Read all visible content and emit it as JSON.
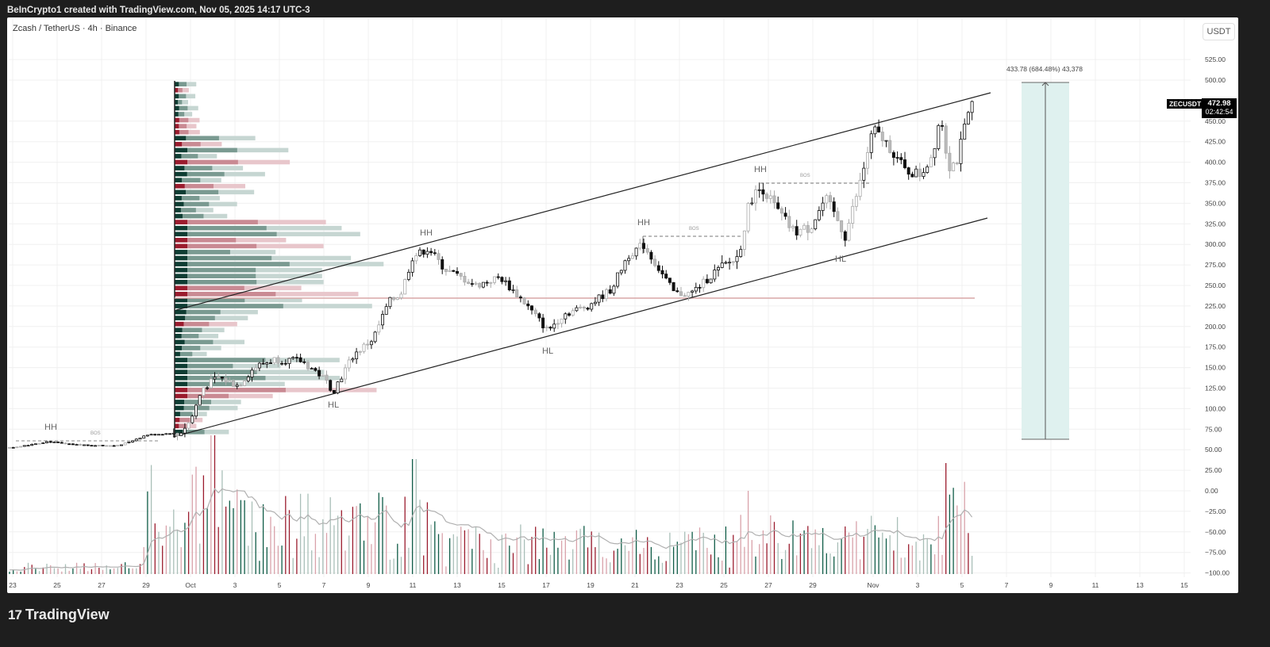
{
  "header": {
    "attribution": "BeInCrypto1 created with TradingView.com, Nov 05, 2025 14:17 UTC-3"
  },
  "chart": {
    "symbol_line": "Zcash / TetherUS · 4h · Binance",
    "currency_button": "USDT",
    "last_price": {
      "ticker": "ZECUSDT",
      "price": "472.98",
      "countdown": "02:42:54"
    },
    "measure_label": "433.78 (684.48%) 43,378",
    "annotations": [
      "HH",
      "BOS",
      "HH",
      "HL",
      "HL",
      "HH",
      "BOS",
      "HH",
      "BOS",
      "HL"
    ]
  },
  "footer": {
    "brand": "TradingView",
    "logo_mark": "17"
  },
  "chart_data": {
    "type": "candlestick",
    "title": "Zcash / TetherUS · 4h · Binance",
    "xlabel": "",
    "ylabel": "USDT",
    "ylim": [
      -100,
      525
    ],
    "grid": true,
    "y_ticks": [
      "525.00",
      "500.00",
      "450.00",
      "425.00",
      "400.00",
      "375.00",
      "350.00",
      "325.00",
      "300.00",
      "275.00",
      "250.00",
      "225.00",
      "200.00",
      "175.00",
      "150.00",
      "125.00",
      "100.00",
      "75.00",
      "50.00",
      "25.00",
      "0.00",
      "-25.00",
      "-50.00",
      "-75.00",
      "-100.00"
    ],
    "x_ticks": [
      "23",
      "25",
      "27",
      "29",
      "Oct",
      "3",
      "5",
      "7",
      "9",
      "11",
      "13",
      "15",
      "17",
      "19",
      "21",
      "23",
      "25",
      "27",
      "29",
      "Nov",
      "3",
      "5",
      "7",
      "9",
      "11",
      "13",
      "15"
    ],
    "price_path": {
      "x_dates": [
        "Sep 22",
        "Sep 25",
        "Sep 28",
        "Sep 30",
        "Oct 1",
        "Oct 2",
        "Oct 4",
        "Oct 6",
        "Oct 8",
        "Oct 9",
        "Oct 10",
        "Oct 11",
        "Oct 12",
        "Oct 14",
        "Oct 16",
        "Oct 17",
        "Oct 19",
        "Oct 21",
        "Oct 22",
        "Oct 23",
        "Oct 25",
        "Oct 26",
        "Oct 27",
        "Oct 28",
        "Oct 29",
        "Oct 30",
        "Oct 31",
        "Nov 1",
        "Nov 2",
        "Nov 3",
        "Nov 4",
        "Nov 5"
      ],
      "close_approx": [
        55,
        62,
        58,
        72,
        90,
        130,
        145,
        155,
        125,
        160,
        235,
        285,
        280,
        255,
        240,
        195,
        225,
        280,
        255,
        232,
        270,
        330,
        360,
        320,
        315,
        355,
        310,
        400,
        430,
        390,
        420,
        472.98
      ]
    },
    "channel": {
      "upper_line": {
        "from": [
          "Sep 30",
          220
        ],
        "to": [
          "Nov 5",
          483
        ]
      },
      "lower_line": {
        "from": [
          "Sep 30",
          65
        ],
        "to": [
          "Nov 5",
          332
        ]
      }
    },
    "horizontal_level": 235,
    "measure": {
      "from_price": 63,
      "to_price": 497,
      "change": 433.78,
      "change_pct": 684.48,
      "ticks": 43378
    },
    "volume_profile": {
      "range": [
        65,
        500
      ],
      "poc_price": 235,
      "note": "Visible-range volume profile anchored at Sep 30, green/red up/down split"
    },
    "volume_series": {
      "ma_line": true,
      "peaks_relative": [
        "Oct 1 spike",
        "Oct 11 spike",
        "Oct 26 spike",
        "Nov 4 spike"
      ]
    },
    "structure_labels": [
      {
        "label": "HH",
        "date": "Sep 25",
        "price": 75
      },
      {
        "label": "BOS",
        "date": "Sep 27",
        "price": 68
      },
      {
        "label": "HL",
        "date": "Oct 8",
        "price": 105
      },
      {
        "label": "HH",
        "date": "Oct 11",
        "price": 315
      },
      {
        "label": "HL",
        "date": "Oct 17",
        "price": 170
      },
      {
        "label": "HH",
        "date": "Oct 21",
        "price": 330
      },
      {
        "label": "BOS",
        "date": "Oct 23",
        "price": 320
      },
      {
        "label": "HH",
        "date": "Oct 27",
        "price": 392
      },
      {
        "label": "BOS",
        "date": "Oct 28",
        "price": 385
      },
      {
        "label": "HL",
        "date": "Oct 31",
        "price": 285
      }
    ]
  }
}
